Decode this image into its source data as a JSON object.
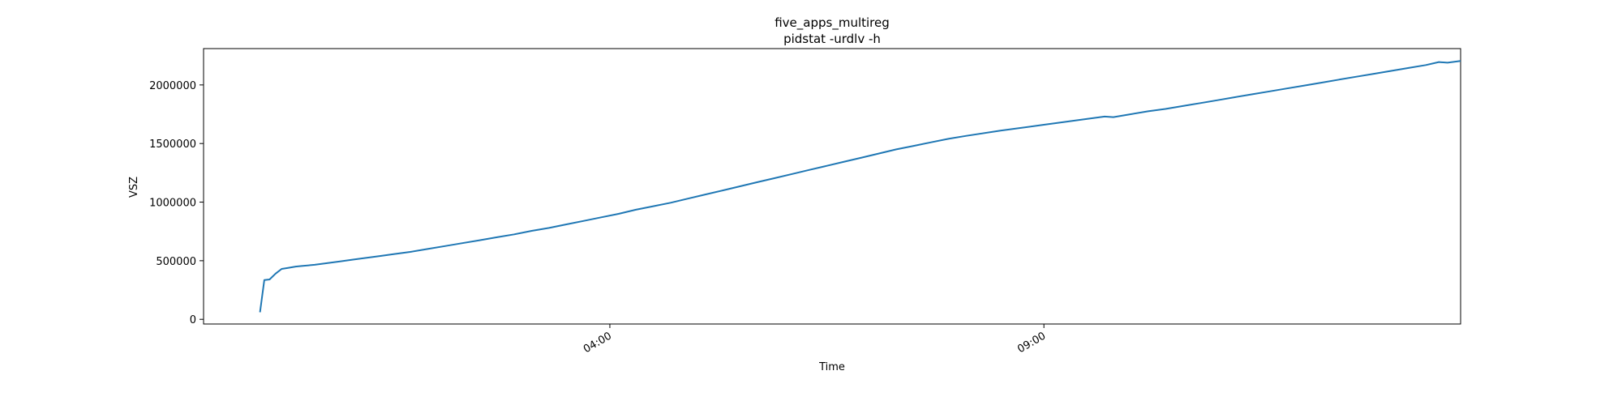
{
  "chart_data": {
    "type": "line",
    "title": "five_apps_multireg",
    "subtitle": "pidstat -urdlv -h",
    "xlabel": "Time",
    "ylabel": "VSZ",
    "grid": false,
    "x_unit": "hours",
    "xlim": [
      -0.68,
      13.8
    ],
    "ylim": [
      -40000,
      2310000
    ],
    "x_ticks": [
      {
        "value": 4.0,
        "label": "04:00"
      },
      {
        "value": 9.0,
        "label": "09:00"
      }
    ],
    "y_ticks": [
      {
        "value": 0,
        "label": "0"
      },
      {
        "value": 500000,
        "label": "500000"
      },
      {
        "value": 1000000,
        "label": "1000000"
      },
      {
        "value": 1500000,
        "label": "1500000"
      },
      {
        "value": 2000000,
        "label": "2000000"
      }
    ],
    "line_color": "#1f77b4",
    "series": [
      {
        "values": [
          [
            -0.03,
            60000
          ],
          [
            0.02,
            335000
          ],
          [
            0.08,
            340000
          ],
          [
            0.15,
            390000
          ],
          [
            0.22,
            430000
          ],
          [
            0.3,
            440000
          ],
          [
            0.38,
            450000
          ],
          [
            0.45,
            455000
          ],
          [
            0.6,
            465000
          ],
          [
            0.75,
            480000
          ],
          [
            0.9,
            495000
          ],
          [
            1.05,
            510000
          ],
          [
            1.2,
            525000
          ],
          [
            1.35,
            540000
          ],
          [
            1.5,
            555000
          ],
          [
            1.7,
            575000
          ],
          [
            1.9,
            600000
          ],
          [
            2.1,
            625000
          ],
          [
            2.3,
            650000
          ],
          [
            2.5,
            675000
          ],
          [
            2.7,
            700000
          ],
          [
            2.9,
            725000
          ],
          [
            3.1,
            755000
          ],
          [
            3.3,
            780000
          ],
          [
            3.5,
            810000
          ],
          [
            3.7,
            840000
          ],
          [
            3.9,
            870000
          ],
          [
            4.1,
            900000
          ],
          [
            4.3,
            935000
          ],
          [
            4.5,
            965000
          ],
          [
            4.7,
            995000
          ],
          [
            4.9,
            1030000
          ],
          [
            5.1,
            1065000
          ],
          [
            5.3,
            1100000
          ],
          [
            5.5,
            1135000
          ],
          [
            5.7,
            1170000
          ],
          [
            5.9,
            1205000
          ],
          [
            6.1,
            1240000
          ],
          [
            6.3,
            1275000
          ],
          [
            6.5,
            1310000
          ],
          [
            6.7,
            1345000
          ],
          [
            6.9,
            1380000
          ],
          [
            7.1,
            1415000
          ],
          [
            7.3,
            1450000
          ],
          [
            7.5,
            1480000
          ],
          [
            7.7,
            1510000
          ],
          [
            7.9,
            1540000
          ],
          [
            8.1,
            1565000
          ],
          [
            8.5,
            1610000
          ],
          [
            9.0,
            1660000
          ],
          [
            9.5,
            1710000
          ],
          [
            9.7,
            1730000
          ],
          [
            9.8,
            1725000
          ],
          [
            10.0,
            1750000
          ],
          [
            10.2,
            1775000
          ],
          [
            10.4,
            1795000
          ],
          [
            10.6,
            1820000
          ],
          [
            10.8,
            1845000
          ],
          [
            11.0,
            1870000
          ],
          [
            11.2,
            1895000
          ],
          [
            11.4,
            1920000
          ],
          [
            11.6,
            1945000
          ],
          [
            11.8,
            1970000
          ],
          [
            12.0,
            1995000
          ],
          [
            12.2,
            2020000
          ],
          [
            12.4,
            2045000
          ],
          [
            12.6,
            2070000
          ],
          [
            12.8,
            2095000
          ],
          [
            13.0,
            2120000
          ],
          [
            13.2,
            2145000
          ],
          [
            13.4,
            2170000
          ],
          [
            13.55,
            2195000
          ],
          [
            13.65,
            2190000
          ],
          [
            13.8,
            2205000
          ]
        ]
      }
    ]
  }
}
